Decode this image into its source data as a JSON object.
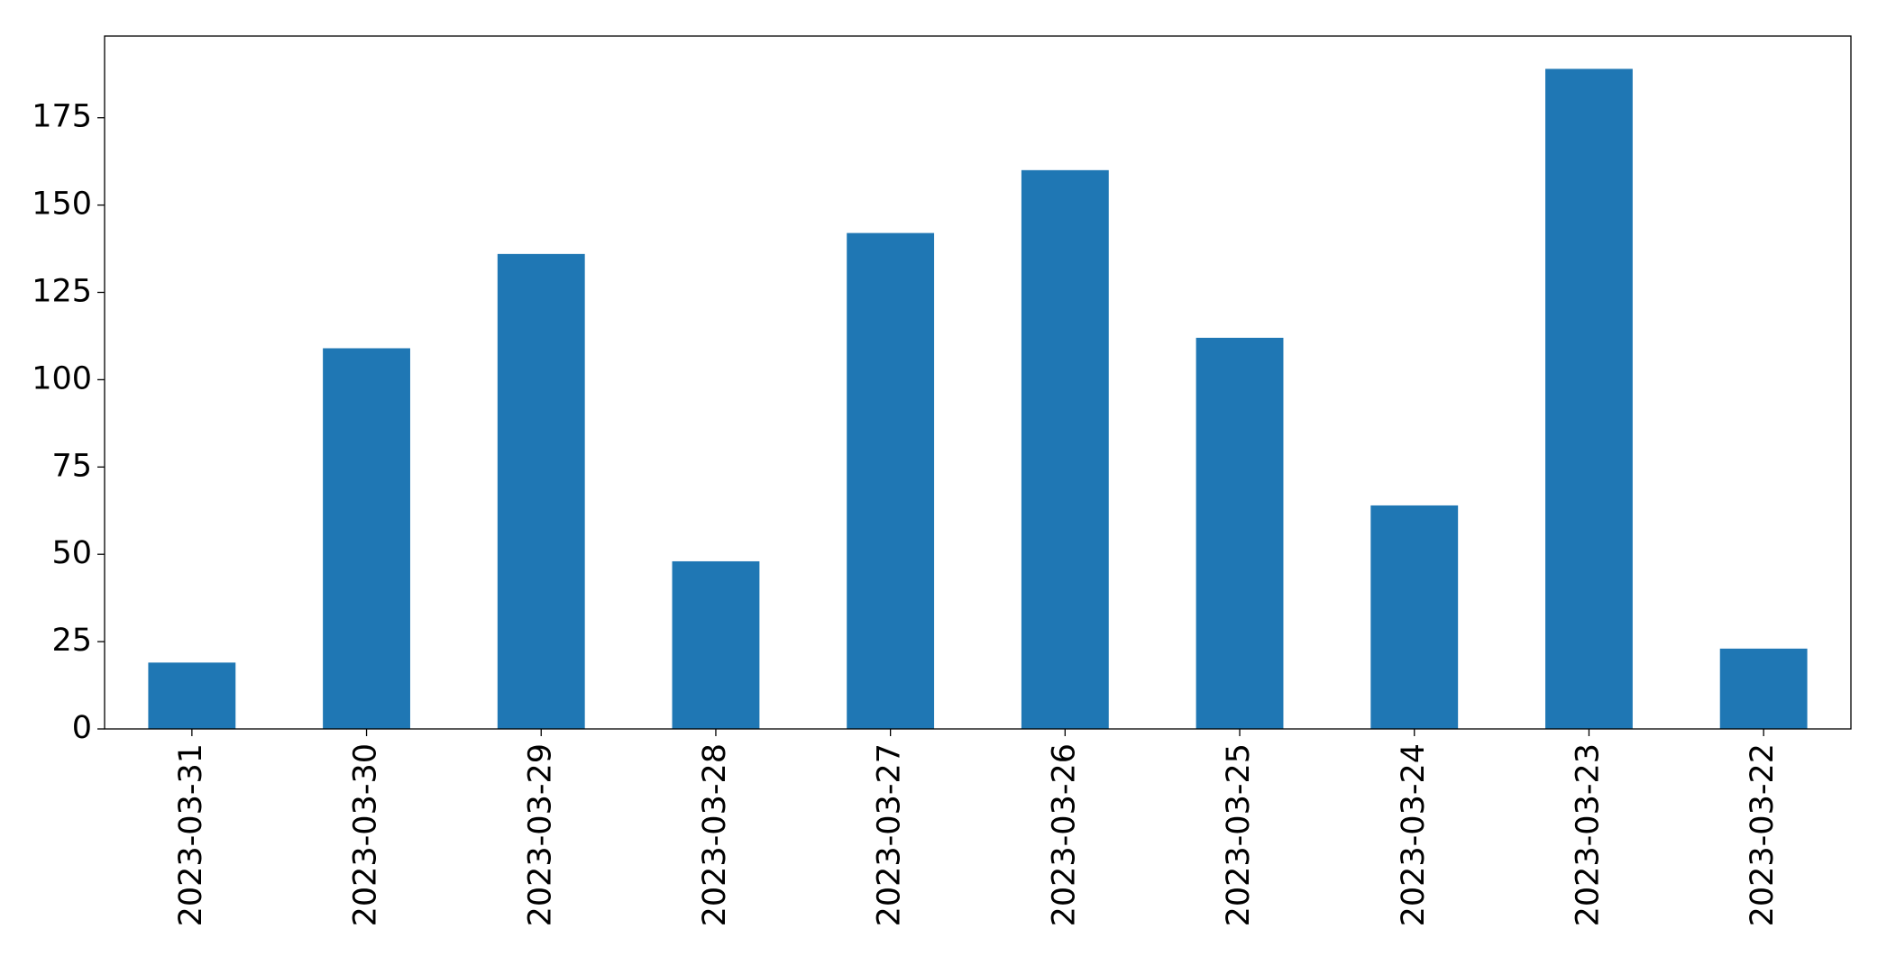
{
  "chart_data": {
    "type": "bar",
    "categories": [
      "2023-03-31",
      "2023-03-30",
      "2023-03-29",
      "2023-03-28",
      "2023-03-27",
      "2023-03-26",
      "2023-03-25",
      "2023-03-24",
      "2023-03-23",
      "2023-03-22"
    ],
    "values": [
      19,
      109,
      136,
      48,
      142,
      160,
      112,
      64,
      189,
      23
    ],
    "color": "#1f77b4",
    "ylim": [
      0,
      198.4
    ],
    "yticks": [
      0,
      25,
      50,
      75,
      100,
      125,
      150,
      175
    ],
    "grid": false
  }
}
